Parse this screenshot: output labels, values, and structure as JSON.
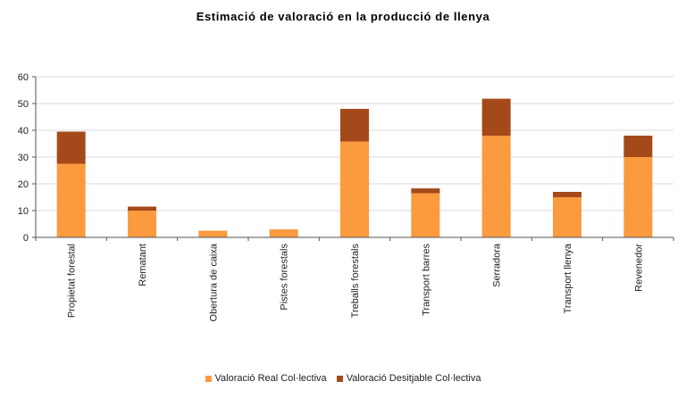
{
  "colors": {
    "real": "#FB9A3E",
    "desitjable": "#A44A1A",
    "grid": "#D9D9D9",
    "axis": "#555555"
  },
  "chart_data": {
    "type": "bar",
    "stacked": true,
    "title": "Estimació de valoració en la producció de llenya",
    "xlabel": "",
    "ylabel": "",
    "ylim": [
      0,
      60
    ],
    "yticks": [
      0,
      10,
      20,
      30,
      40,
      50,
      60
    ],
    "grid": true,
    "legend_position": "bottom",
    "categories": [
      "Propietat forestal",
      "Rematant",
      "Obertura de caixa",
      "Pistes forestals",
      "Treballs forestals",
      "Transport barres",
      "Serradora",
      "Transport llenya",
      "Revenedor"
    ],
    "series": [
      {
        "name": "Valoració Real Col·lectiva",
        "values": [
          27.5,
          10,
          2.5,
          3,
          35.8,
          16.5,
          38,
          15,
          30
        ]
      },
      {
        "name": "Valoració Desitjable Col·lectiva",
        "values": [
          12,
          1.5,
          0,
          0,
          12.2,
          1.8,
          13.8,
          2,
          8
        ]
      }
    ]
  }
}
